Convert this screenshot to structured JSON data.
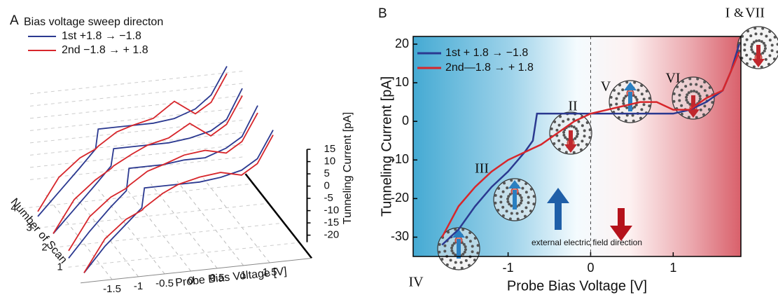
{
  "chart_data": [
    {
      "type": "line3d",
      "panel": "A",
      "legend_title": "Bias voltage sweep directon",
      "xlabel": "Probe Bias Voltage [V]",
      "ylabel": "Number of Scan",
      "zlabel": "Tunneling Current [pA]",
      "x": [
        -1.8,
        -1.4,
        -1,
        -0.7,
        -0.65,
        -0.3,
        0,
        0.4,
        0.8,
        1.2,
        1.5,
        1.8
      ],
      "series": [
        {
          "name": "1st  +1.8 → −1.8",
          "color": "#2b3990",
          "values": [
            [
              -30,
              -20,
              -12,
              -6,
              2,
              2,
              2,
              2,
              3,
              5,
              9,
              20
            ],
            [
              -32,
              -22,
              -13,
              -7,
              2,
              2,
              2,
              3,
              3,
              6,
              10,
              22
            ],
            [
              -30,
              -21,
              -12,
              -5,
              2,
              2,
              2,
              2,
              3,
              5,
              9,
              21
            ],
            [
              -31,
              -22,
              -13,
              -6,
              2,
              2,
              2,
              2,
              3,
              6,
              11,
              22
            ]
          ]
        },
        {
          "name": "2nd −1.8 → + 1.8",
          "color": "#d7262b",
          "values": [
            [
              -30,
              -17,
              -10,
              -7,
              -6,
              -1,
              2,
              4,
              5,
              3,
              7,
              18
            ],
            [
              -29,
              -16,
              -9,
              -6,
              -5,
              0,
              2,
              5,
              6,
              4,
              8,
              19
            ],
            [
              -30,
              -17,
              -10,
              -6,
              -5,
              -1,
              2,
              4,
              9,
              3,
              7,
              18
            ],
            [
              -29,
              -16,
              -9,
              -6,
              -5,
              0,
              2,
              4,
              10,
              4,
              8,
              19
            ]
          ]
        }
      ],
      "xticks": [
        -1.5,
        -1,
        -0.5,
        0,
        0.5,
        1,
        1.5
      ],
      "yticks": [
        1,
        2,
        3,
        4
      ],
      "zticks": [
        15,
        10,
        5,
        0,
        -5,
        -10,
        -15,
        -20
      ],
      "grid": true
    },
    {
      "type": "line",
      "panel": "B",
      "xlabel": "Probe Bias Voltage [V]",
      "ylabel": "Tunneling Current [pA]",
      "xlim": [
        -2.15,
        1.82
      ],
      "ylim": [
        -35,
        22
      ],
      "xticks": [
        -1,
        0,
        1
      ],
      "yticks": [
        -30,
        -20,
        -10,
        0,
        10,
        20
      ],
      "series": [
        {
          "name": "1st + 1.8 → −1.8",
          "color": "#2b3990",
          "x": [
            -1.8,
            -1.6,
            -1.4,
            -1.2,
            -1.0,
            -0.8,
            -0.7,
            -0.65,
            -0.4,
            0,
            0.5,
            1.0,
            1.2,
            1.4,
            1.6,
            1.7,
            1.8
          ],
          "values": [
            -32,
            -28,
            -22,
            -17,
            -13,
            -8,
            -5,
            2,
            2,
            2,
            2,
            2,
            3,
            5,
            8,
            13,
            20
          ]
        },
        {
          "name": "2nd—1.8 → + 1.8",
          "color": "#d7262b",
          "x": [
            -1.8,
            -1.6,
            -1.4,
            -1.2,
            -1.0,
            -0.8,
            -0.6,
            -0.4,
            -0.2,
            0,
            0.2,
            0.4,
            0.6,
            0.8,
            1.0,
            1.2,
            1.4,
            1.6,
            1.8
          ],
          "values": [
            -30,
            -22,
            -17,
            -13,
            -10,
            -8,
            -6,
            -3,
            0,
            2,
            3,
            4,
            5,
            5,
            3,
            3,
            6,
            8,
            18
          ]
        }
      ],
      "legend": "upper left",
      "annotations": [
        {
          "text": "I",
          "color": "#2b6cb0"
        },
        {
          "text": "&",
          "color": "#111111"
        },
        {
          "text": "VII",
          "color": "#c0272d"
        },
        {
          "text": "II",
          "color": "#2b6cb0"
        },
        {
          "text": "III",
          "color": "#2b6cb0"
        },
        {
          "text": "IV",
          "color": "#c0272d"
        },
        {
          "text": "V",
          "color": "#c0272d"
        },
        {
          "text": "VI",
          "color": "#c0272d"
        },
        {
          "text": "external electric field direction",
          "color": "#111111"
        }
      ]
    }
  ]
}
